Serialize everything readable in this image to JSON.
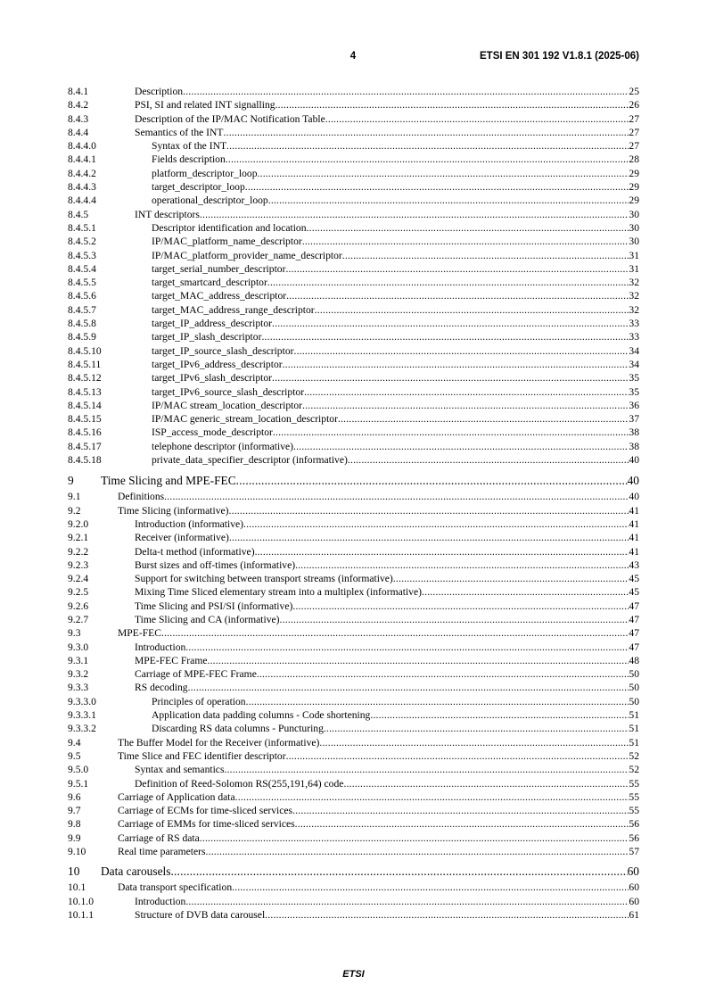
{
  "header": {
    "page_number": "4",
    "document_id": "ETSI EN 301 192 V1.8.1 (2025-06)"
  },
  "toc": [
    {
      "num": "8.4.1",
      "title": "Description",
      "page": "25"
    },
    {
      "num": "8.4.2",
      "title": "PSI, SI and related INT signalling",
      "page": "26"
    },
    {
      "num": "8.4.3",
      "title": "Description of the IP/MAC Notification Table",
      "page": "27"
    },
    {
      "num": "8.4.4",
      "title": "Semantics of the INT",
      "page": "27"
    },
    {
      "num": "8.4.4.0",
      "title": "Syntax of the INT",
      "page": "27"
    },
    {
      "num": "8.4.4.1",
      "title": "Fields description",
      "page": "28"
    },
    {
      "num": "8.4.4.2",
      "title": "platform_descriptor_loop",
      "page": "29"
    },
    {
      "num": "8.4.4.3",
      "title": "target_descriptor_loop",
      "page": "29"
    },
    {
      "num": "8.4.4.4",
      "title": "operational_descriptor_loop",
      "page": "29"
    },
    {
      "num": "8.4.5",
      "title": "INT descriptors",
      "page": "30"
    },
    {
      "num": "8.4.5.1",
      "title": "Descriptor identification and location",
      "page": "30"
    },
    {
      "num": "8.4.5.2",
      "title": "IP/MAC_platform_name_descriptor",
      "page": "30"
    },
    {
      "num": "8.4.5.3",
      "title": "IP/MAC_platform_provider_name_descriptor",
      "page": "31"
    },
    {
      "num": "8.4.5.4",
      "title": "target_serial_number_descriptor",
      "page": "31"
    },
    {
      "num": "8.4.5.5",
      "title": "target_smartcard_descriptor",
      "page": "32"
    },
    {
      "num": "8.4.5.6",
      "title": "target_MAC_address_descriptor",
      "page": "32"
    },
    {
      "num": "8.4.5.7",
      "title": "target_MAC_address_range_descriptor",
      "page": "32"
    },
    {
      "num": "8.4.5.8",
      "title": "target_IP_address_descriptor",
      "page": "33"
    },
    {
      "num": "8.4.5.9",
      "title": "target_IP_slash_descriptor",
      "page": "33"
    },
    {
      "num": "8.4.5.10",
      "title": "target_IP_source_slash_descriptor",
      "page": "34"
    },
    {
      "num": "8.4.5.11",
      "title": "target_IPv6_address_descriptor",
      "page": "34"
    },
    {
      "num": "8.4.5.12",
      "title": "target_IPv6_slash_descriptor",
      "page": "35"
    },
    {
      "num": "8.4.5.13",
      "title": "target_IPv6_source_slash_descriptor",
      "page": "35"
    },
    {
      "num": "8.4.5.14",
      "title": "IP/MAC stream_location_descriptor",
      "page": "36"
    },
    {
      "num": "8.4.5.15",
      "title": "IP/MAC generic_stream_location_descriptor",
      "page": "37"
    },
    {
      "num": "8.4.5.16",
      "title": "ISP_access_mode_descriptor",
      "page": "38"
    },
    {
      "num": "8.4.5.17",
      "title": "telephone descriptor (informative)",
      "page": "38"
    },
    {
      "num": "8.4.5.18",
      "title": "private_data_specifier_descriptor (informative)",
      "page": "40"
    },
    {
      "num": "9",
      "title": "Time Slicing and MPE-FEC",
      "page": "40"
    },
    {
      "num": "9.1",
      "title": "Definitions",
      "page": "40"
    },
    {
      "num": "9.2",
      "title": "Time Slicing (informative)",
      "page": "41"
    },
    {
      "num": "9.2.0",
      "title": "Introduction (informative)",
      "page": "41"
    },
    {
      "num": "9.2.1",
      "title": "Receiver (informative)",
      "page": "41"
    },
    {
      "num": "9.2.2",
      "title": "Delta-t method (informative)",
      "page": "41"
    },
    {
      "num": "9.2.3",
      "title": "Burst sizes and off-times (informative)",
      "page": "43"
    },
    {
      "num": "9.2.4",
      "title": "Support for switching between transport streams (informative)",
      "page": "45"
    },
    {
      "num": "9.2.5",
      "title": "Mixing Time Sliced elementary stream into a multiplex (informative)",
      "page": "45"
    },
    {
      "num": "9.2.6",
      "title": "Time Slicing and PSI/SI (informative)",
      "page": "47"
    },
    {
      "num": "9.2.7",
      "title": "Time Slicing and CA (informative)",
      "page": "47"
    },
    {
      "num": "9.3",
      "title": "MPE-FEC",
      "page": "47"
    },
    {
      "num": "9.3.0",
      "title": "Introduction",
      "page": "47"
    },
    {
      "num": "9.3.1",
      "title": "MPE-FEC Frame",
      "page": "48"
    },
    {
      "num": "9.3.2",
      "title": "Carriage of MPE-FEC Frame",
      "page": "50"
    },
    {
      "num": "9.3.3",
      "title": "RS decoding",
      "page": "50"
    },
    {
      "num": "9.3.3.0",
      "title": "Principles of operation",
      "page": "50"
    },
    {
      "num": "9.3.3.1",
      "title": "Application data padding columns - Code shortening",
      "page": "51"
    },
    {
      "num": "9.3.3.2",
      "title": "Discarding RS data columns - Puncturing",
      "page": "51"
    },
    {
      "num": "9.4",
      "title": "The Buffer Model for the Receiver (informative)",
      "page": "51"
    },
    {
      "num": "9.5",
      "title": "Time Slice and FEC identifier descriptor",
      "page": "52"
    },
    {
      "num": "9.5.0",
      "title": "Syntax and semantics",
      "page": "52"
    },
    {
      "num": "9.5.1",
      "title": "Definition of Reed-Solomon RS(255,191,64) code",
      "page": "55"
    },
    {
      "num": "9.6",
      "title": "Carriage of Application data",
      "page": "55"
    },
    {
      "num": "9.7",
      "title": "Carriage of ECMs for time-sliced services",
      "page": "55"
    },
    {
      "num": "9.8",
      "title": "Carriage of EMMs for time-sliced services",
      "page": "56"
    },
    {
      "num": "9.9",
      "title": "Carriage of RS data",
      "page": "56"
    },
    {
      "num": "9.10",
      "title": "Real time parameters",
      "page": "57"
    },
    {
      "num": "10",
      "title": "Data carousels",
      "page": "60"
    },
    {
      "num": "10.1",
      "title": "Data transport specification",
      "page": "60"
    },
    {
      "num": "10.1.0",
      "title": "Introduction",
      "page": "60"
    },
    {
      "num": "10.1.1",
      "title": "Structure of DVB data carousel",
      "page": "61"
    }
  ],
  "footer": {
    "text": "ETSI"
  }
}
